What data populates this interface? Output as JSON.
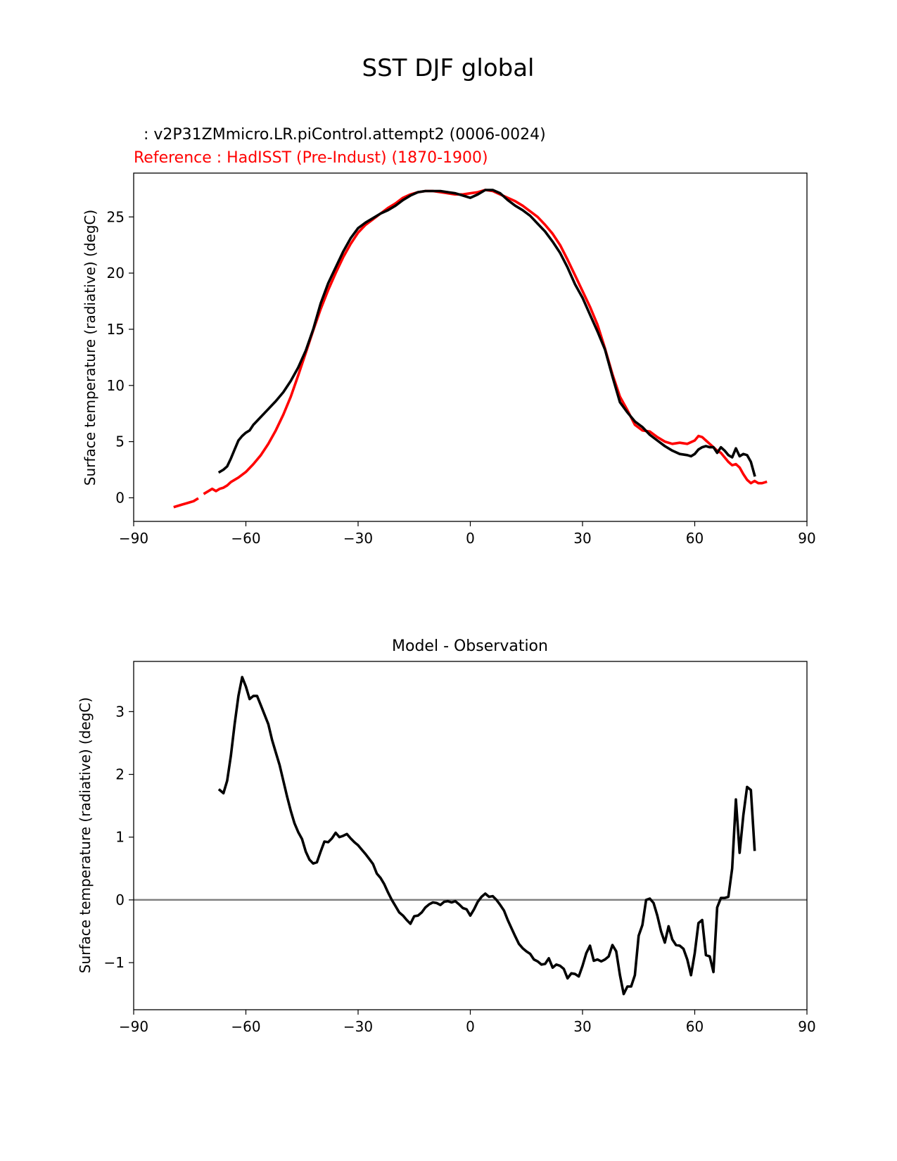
{
  "figure_title": "SST DJF global",
  "colors": {
    "model": "#000000",
    "reference": "#ff0000",
    "zero_line": "#808080",
    "axes": "#000000"
  },
  "chart_data": [
    {
      "type": "line",
      "model_label": "  : v2P31ZMmicro.LR.piControl.attempt2 (0006-0024)",
      "reference_label": "Reference : HadISST (Pre-Indust) (1870-1900)",
      "title": "",
      "xlabel": "",
      "ylabel": "Surface temperature (radiative) (degC)",
      "xlim": [
        -90,
        90
      ],
      "ylim": [
        -2.1,
        28.9
      ],
      "xticks": [
        -90,
        -60,
        -30,
        0,
        30,
        60,
        90
      ],
      "xtick_labels": [
        "−90",
        "−60",
        "−30",
        "0",
        "30",
        "60",
        "90"
      ],
      "yticks": [
        0,
        5,
        10,
        15,
        20,
        25
      ],
      "ytick_labels": [
        "0",
        "5",
        "10",
        "15",
        "20",
        "25"
      ],
      "series": [
        {
          "name": "model",
          "x": [
            -67,
            -66,
            -65,
            -64,
            -63,
            -62,
            -61,
            -60,
            -59,
            -58,
            -56,
            -54,
            -52,
            -50,
            -48,
            -46,
            -44,
            -42,
            -40,
            -38,
            -36,
            -34,
            -32,
            -30,
            -28,
            -26,
            -24,
            -22,
            -20,
            -18,
            -16,
            -14,
            -12,
            -10,
            -8,
            -6,
            -4,
            -2,
            0,
            2,
            4,
            6,
            8,
            10,
            12,
            14,
            16,
            18,
            20,
            22,
            24,
            26,
            28,
            30,
            32,
            34,
            36,
            38,
            40,
            42,
            44,
            46,
            48,
            50,
            52,
            54,
            56,
            58,
            59,
            60,
            61,
            62,
            63,
            64,
            65,
            66,
            67,
            68,
            69,
            70,
            71,
            72,
            73,
            74,
            75,
            76
          ],
          "y": [
            2.3,
            2.5,
            2.8,
            3.5,
            4.3,
            5.1,
            5.5,
            5.8,
            6.0,
            6.5,
            7.2,
            7.9,
            8.6,
            9.4,
            10.4,
            11.6,
            13.1,
            15.0,
            17.3,
            19.1,
            20.5,
            21.9,
            23.1,
            24.0,
            24.5,
            24.9,
            25.3,
            25.6,
            26.0,
            26.5,
            26.9,
            27.2,
            27.3,
            27.3,
            27.3,
            27.2,
            27.1,
            26.9,
            26.7,
            27.0,
            27.4,
            27.4,
            27.1,
            26.5,
            26.0,
            25.6,
            25.1,
            24.4,
            23.7,
            22.8,
            21.8,
            20.5,
            19.0,
            17.8,
            16.3,
            14.8,
            13.2,
            10.8,
            8.5,
            7.6,
            6.8,
            6.3,
            5.6,
            5.1,
            4.6,
            4.2,
            3.9,
            3.8,
            3.7,
            3.9,
            4.3,
            4.5,
            4.6,
            4.5,
            4.5,
            4.0,
            4.5,
            4.2,
            3.8,
            3.6,
            4.4,
            3.7,
            3.9,
            3.8,
            3.2,
            2.0
          ]
        },
        {
          "name": "reference",
          "x": [
            -79,
            -78,
            -77,
            -76,
            -75,
            -74,
            -73,
            -72,
            -71,
            -70,
            -69,
            -68,
            -67,
            -66,
            -65,
            -64,
            -62,
            -60,
            -58,
            -56,
            -54,
            -52,
            -50,
            -48,
            -46,
            -44,
            -42,
            -40,
            -38,
            -36,
            -34,
            -32,
            -30,
            -28,
            -26,
            -24,
            -22,
            -20,
            -18,
            -16,
            -14,
            -12,
            -10,
            -8,
            -6,
            -4,
            -2,
            0,
            2,
            4,
            6,
            8,
            10,
            12,
            14,
            16,
            18,
            20,
            22,
            24,
            26,
            28,
            30,
            32,
            34,
            36,
            38,
            40,
            42,
            44,
            46,
            48,
            50,
            52,
            54,
            56,
            58,
            60,
            61,
            62,
            63,
            64,
            65,
            66,
            67,
            68,
            69,
            70,
            71,
            72,
            73,
            74,
            75,
            76,
            77,
            78,
            79
          ],
          "y": [
            -0.8,
            -0.7,
            -0.6,
            -0.5,
            -0.4,
            -0.3,
            -0.1,
            null,
            0.4,
            0.6,
            0.8,
            0.6,
            0.8,
            0.9,
            1.1,
            1.4,
            1.8,
            2.3,
            3.0,
            3.8,
            4.8,
            6.0,
            7.4,
            9.0,
            10.9,
            12.9,
            14.9,
            16.8,
            18.5,
            20.0,
            21.4,
            22.6,
            23.6,
            24.3,
            24.8,
            25.3,
            25.8,
            26.2,
            26.7,
            27.0,
            27.2,
            27.3,
            27.3,
            27.2,
            27.1,
            27.0,
            27.0,
            27.1,
            27.2,
            27.4,
            27.3,
            27.0,
            26.7,
            26.4,
            26.0,
            25.5,
            25.0,
            24.3,
            23.5,
            22.5,
            21.2,
            19.8,
            18.4,
            17.0,
            15.4,
            13.3,
            11.0,
            9.0,
            7.8,
            6.5,
            6.0,
            5.9,
            5.4,
            5.0,
            4.8,
            4.9,
            4.8,
            5.1,
            5.5,
            5.4,
            5.1,
            4.8,
            4.5,
            4.2,
            4.0,
            3.6,
            3.2,
            2.9,
            3.0,
            2.7,
            2.1,
            1.6,
            1.3,
            1.5,
            1.3,
            1.3,
            1.4
          ]
        }
      ]
    },
    {
      "type": "line",
      "title": "Model - Observation",
      "xlabel": "",
      "ylabel": "Surface temperature (radiative) (degC)",
      "xlim": [
        -90,
        90
      ],
      "ylim": [
        -1.75,
        3.8
      ],
      "xticks": [
        -90,
        -60,
        -30,
        0,
        30,
        60,
        90
      ],
      "xtick_labels": [
        "−90",
        "−60",
        "−30",
        "0",
        "30",
        "60",
        "90"
      ],
      "yticks": [
        -1,
        0,
        1,
        2,
        3
      ],
      "ytick_labels": [
        "−1",
        "0",
        "1",
        "2",
        "3"
      ],
      "zero_line": 0,
      "series": [
        {
          "name": "difference",
          "x": [
            -67,
            -66,
            -65,
            -64,
            -63,
            -62,
            -61,
            -60,
            -59,
            -58,
            -57,
            -56,
            -55,
            -54,
            -53,
            -52,
            -51,
            -50,
            -49,
            -48,
            -47,
            -46,
            -45,
            -44,
            -43,
            -42,
            -41,
            -40,
            -39,
            -38,
            -37,
            -36,
            -35,
            -34,
            -33,
            -32,
            -31,
            -30,
            -29,
            -28,
            -27,
            -26,
            -25,
            -24,
            -23,
            -22,
            -21,
            -20,
            -19,
            -18,
            -17,
            -16,
            -15,
            -14,
            -13,
            -12,
            -11,
            -10,
            -9,
            -8,
            -7,
            -6,
            -5,
            -4,
            -3,
            -2,
            -1,
            0,
            1,
            2,
            3,
            4,
            5,
            6,
            7,
            8,
            9,
            10,
            11,
            12,
            13,
            14,
            15,
            16,
            17,
            18,
            19,
            20,
            21,
            22,
            23,
            24,
            25,
            26,
            27,
            28,
            29,
            30,
            31,
            32,
            33,
            34,
            35,
            36,
            37,
            38,
            39,
            40,
            41,
            42,
            43,
            44,
            45,
            46,
            47,
            48,
            49,
            50,
            51,
            52,
            53,
            54,
            55,
            56,
            57,
            58,
            59,
            60,
            61,
            62,
            63,
            64,
            65,
            66,
            67,
            68,
            69,
            70,
            71,
            72,
            73,
            74,
            75,
            76
          ],
          "y": [
            1.75,
            1.7,
            1.9,
            2.3,
            2.8,
            3.25,
            3.55,
            3.4,
            3.2,
            3.25,
            3.25,
            3.1,
            2.95,
            2.8,
            2.55,
            2.35,
            2.15,
            1.9,
            1.65,
            1.42,
            1.22,
            1.08,
            0.97,
            0.77,
            0.64,
            0.58,
            0.6,
            0.77,
            0.93,
            0.92,
            0.98,
            1.07,
            1.0,
            1.02,
            1.05,
            0.98,
            0.92,
            0.87,
            0.8,
            0.73,
            0.65,
            0.57,
            0.42,
            0.35,
            0.25,
            0.12,
            0.0,
            -0.1,
            -0.2,
            -0.25,
            -0.32,
            -0.38,
            -0.26,
            -0.25,
            -0.2,
            -0.12,
            -0.07,
            -0.04,
            -0.05,
            -0.08,
            -0.03,
            -0.02,
            -0.04,
            -0.02,
            -0.07,
            -0.13,
            -0.15,
            -0.25,
            -0.15,
            -0.03,
            0.05,
            0.1,
            0.05,
            0.06,
            0.0,
            -0.08,
            -0.17,
            -0.32,
            -0.45,
            -0.58,
            -0.7,
            -0.77,
            -0.82,
            -0.86,
            -0.95,
            -0.98,
            -1.03,
            -1.02,
            -0.93,
            -1.08,
            -1.03,
            -1.05,
            -1.1,
            -1.25,
            -1.17,
            -1.18,
            -1.22,
            -1.05,
            -0.85,
            -0.73,
            -0.97,
            -0.95,
            -0.98,
            -0.95,
            -0.9,
            -0.72,
            -0.82,
            -1.2,
            -1.5,
            -1.38,
            -1.38,
            -1.2,
            -0.57,
            -0.4,
            0.0,
            0.02,
            -0.05,
            -0.25,
            -0.5,
            -0.68,
            -0.42,
            -0.63,
            -0.72,
            -0.73,
            -0.78,
            -0.95,
            -1.2,
            -0.85,
            -0.37,
            -0.32,
            -0.88,
            -0.9,
            -1.15,
            -0.12,
            0.03,
            0.03,
            0.05,
            0.5,
            1.6,
            0.75,
            1.35,
            1.8,
            1.75,
            0.8
          ]
        }
      ]
    }
  ]
}
